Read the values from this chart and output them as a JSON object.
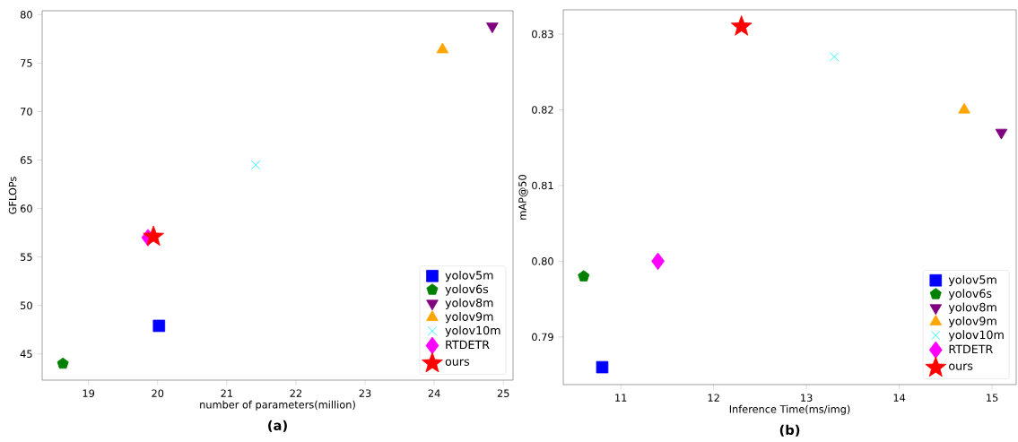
{
  "chart_data": [
    {
      "type": "scatter",
      "title": "(a)",
      "xlabel": "number of parameters(million)",
      "ylabel": "GFLOPs",
      "xlim": [
        18.33,
        25.14
      ],
      "ylim": [
        42.3,
        80.4
      ],
      "xticks": [
        19,
        20,
        21,
        22,
        23,
        24,
        25
      ],
      "yticks": [
        45,
        50,
        55,
        60,
        65,
        70,
        75,
        80
      ],
      "legend": "bottom right",
      "series": [
        {
          "name": "yolov5m",
          "color": "#0000ff",
          "marker": "square",
          "x": [
            20.02
          ],
          "values": [
            47.9
          ]
        },
        {
          "name": "yolov6s",
          "color": "#008000",
          "x": [
            18.63
          ],
          "values": [
            44.0
          ]
        },
        {
          "name": "yolov8m",
          "color": "#800080",
          "marker": "triangle_down",
          "x": [
            24.84
          ],
          "values": [
            78.8
          ]
        },
        {
          "name": "yolov9m",
          "color": "#ffa500",
          "marker": "triangle",
          "x": [
            24.12
          ],
          "values": [
            76.4
          ]
        },
        {
          "name": "yolov10m",
          "color": "#00ffff",
          "marker": "cross",
          "x": [
            21.42
          ],
          "values": [
            64.5
          ]
        },
        {
          "name": "RTDETR",
          "color": "#ff00ff",
          "marker": "diamond",
          "x": [
            19.86
          ],
          "values": [
            57.0
          ]
        },
        {
          "name": "ours",
          "color": "#ff0000",
          "marker": "star",
          "x": [
            19.94
          ],
          "values": [
            57.1
          ]
        }
      ]
    },
    {
      "type": "scatter",
      "title": "(b)",
      "xlabel": "Inference Time(ms/img)",
      "ylabel": "mAP@50",
      "xlim": [
        10.38,
        15.26
      ],
      "ylim": [
        0.7837,
        0.8332
      ],
      "xticks": [
        11,
        12,
        13,
        14,
        15
      ],
      "yticks": [
        0.79,
        {
          "value": 0.8,
          "label": "0.80"
        },
        0.81,
        0.82,
        0.83
      ],
      "legend": "bottom right",
      "series": [
        {
          "name": "yolov5m",
          "color": "#0000ff",
          "marker": "square",
          "x": [
            10.8
          ],
          "values": [
            0.786
          ]
        },
        {
          "name": "yolov6s",
          "color": "#008000",
          "x": [
            10.6
          ],
          "values": [
            0.798
          ]
        },
        {
          "name": "yolov8m",
          "color": "#800080",
          "marker": "triangle_down",
          "x": [
            15.1
          ],
          "values": [
            0.817
          ]
        },
        {
          "name": "yolov9m",
          "color": "#ffa500",
          "marker": "triangle",
          "x": [
            14.7
          ],
          "values": [
            0.82
          ]
        },
        {
          "name": "yolov10m",
          "color": "#00ffff",
          "marker": "cross",
          "x": [
            13.3
          ],
          "values": [
            0.827
          ]
        },
        {
          "name": "RTDETR",
          "color": "#ff00ff",
          "marker": "diamond",
          "x": [
            11.4
          ],
          "values": [
            0.8
          ]
        },
        {
          "name": "ours",
          "color": "#ff0000",
          "marker": "star",
          "x": [
            12.3
          ],
          "values": [
            0.831
          ]
        }
      ]
    }
  ]
}
